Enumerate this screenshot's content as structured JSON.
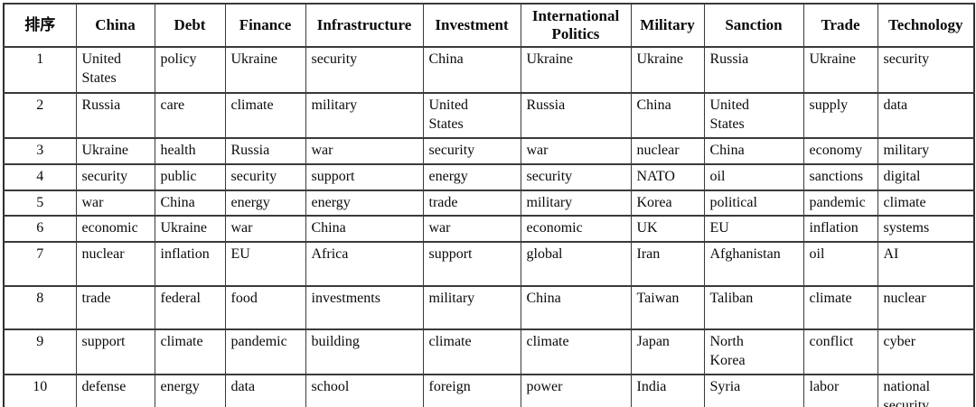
{
  "colors": {
    "background": "#ffffff",
    "border": "#3a3a3a",
    "text": "#0a0a0a"
  },
  "table": {
    "rank_header": "排序",
    "columns": [
      "China",
      "Debt",
      "Finance",
      "Infrastructure",
      "Investment",
      "International\nPolitics",
      "Military",
      "Sanction",
      "Trade",
      "Technology"
    ],
    "rows": [
      {
        "rank": "1",
        "cells": [
          "United\nStates",
          "policy",
          "Ukraine",
          "security",
          "China",
          "Ukraine",
          "Ukraine",
          "Russia",
          "Ukraine",
          "security"
        ]
      },
      {
        "rank": "2",
        "cells": [
          "Russia",
          "care",
          "climate",
          "military",
          "United\nStates",
          "Russia",
          "China",
          "United\nStates",
          "supply",
          "data"
        ]
      },
      {
        "rank": "3",
        "cells": [
          "Ukraine",
          "health",
          "Russia",
          "war",
          "security",
          "war",
          "nuclear",
          "China",
          "economy",
          "military"
        ]
      },
      {
        "rank": "4",
        "cells": [
          "security",
          "public",
          "security",
          "support",
          "energy",
          "security",
          "NATO",
          "oil",
          "sanctions",
          "digital"
        ]
      },
      {
        "rank": "5",
        "cells": [
          "war",
          "China",
          "energy",
          "energy",
          "trade",
          "military",
          "Korea",
          "political",
          "pandemic",
          "climate"
        ]
      },
      {
        "rank": "6",
        "cells": [
          "economic",
          "Ukraine",
          "war",
          "China",
          "war",
          "economic",
          "UK",
          "EU",
          "inflation",
          "systems"
        ]
      },
      {
        "rank": "7",
        "cells": [
          "nuclear",
          "inflation",
          "EU",
          "Africa",
          "support",
          "global",
          "Iran",
          "Afghanistan",
          "oil",
          "AI"
        ]
      },
      {
        "rank": "8",
        "cells": [
          "trade",
          "federal",
          "food",
          "investments",
          "military",
          "China",
          "Taiwan",
          "Taliban",
          "climate",
          "nuclear"
        ]
      },
      {
        "rank": "9",
        "cells": [
          "support",
          "climate",
          "pandemic",
          "building",
          "climate",
          "climate",
          "Japan",
          "North\nKorea",
          "conflict",
          "cyber"
        ]
      },
      {
        "rank": "10",
        "cells": [
          "defense",
          "energy",
          "data",
          "school",
          "foreign",
          "power",
          "India",
          "Syria",
          "labor",
          "national\nsecurity"
        ]
      }
    ]
  }
}
